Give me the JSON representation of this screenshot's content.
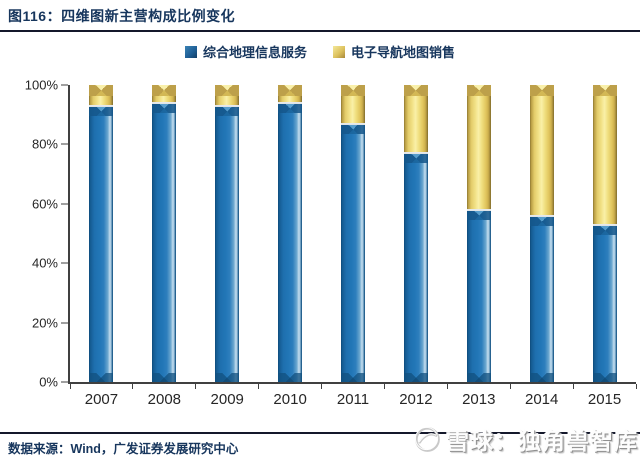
{
  "header": {
    "title": "图116：四维图新主营构成比例变化"
  },
  "legend": [
    {
      "label": "综合地理信息服务",
      "color": "#1F6097"
    },
    {
      "label": "电子导航地图销售",
      "color": "#DDC25E"
    }
  ],
  "chart_data": {
    "type": "bar",
    "stacked": true,
    "title": "四维图新主营构成比例变化",
    "categories": [
      "2007",
      "2008",
      "2009",
      "2010",
      "2011",
      "2012",
      "2013",
      "2014",
      "2015"
    ],
    "series": [
      {
        "name": "综合地理信息服务",
        "color": "#1F6FAE",
        "values": [
          93,
          94,
          93,
          94,
          87,
          77,
          58,
          56,
          53
        ]
      },
      {
        "name": "电子导航地图销售",
        "color": "#E8D06A",
        "values": [
          7,
          6,
          7,
          6,
          13,
          23,
          42,
          44,
          47
        ]
      }
    ],
    "unit": "%",
    "ylim": [
      0,
      100
    ],
    "y_ticks": [
      "100%",
      "80%",
      "60%",
      "40%",
      "20%",
      "0%"
    ],
    "grid": false,
    "legend_position": "top-center"
  },
  "footer": {
    "source": "数据来源：Wind，广发证券发展研究中心"
  },
  "watermark": {
    "icon": "snowball-logo",
    "text": "雪球：独角兽智库"
  }
}
